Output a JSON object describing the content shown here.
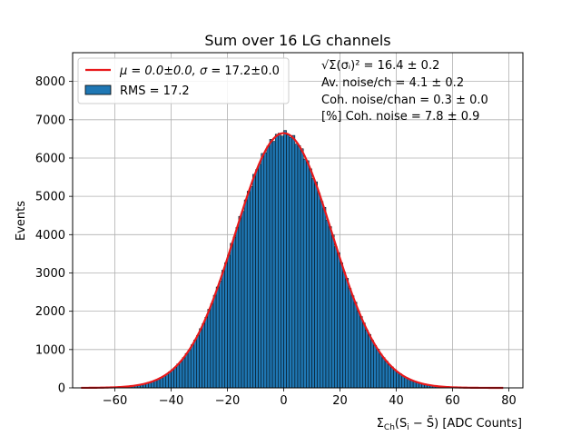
{
  "chart_data": {
    "type": "bar",
    "title": "Sum over 16 LG channels",
    "xlabel": "Σ_Ch(S_i − S̄) [ADC Counts]",
    "ylabel": "Events",
    "xlim": [
      -75,
      85
    ],
    "ylim": [
      0,
      8750
    ],
    "x_ticks": [
      -60,
      -40,
      -20,
      0,
      20,
      40,
      60,
      80
    ],
    "y_ticks": [
      0,
      1000,
      2000,
      3000,
      4000,
      5000,
      6000,
      7000,
      8000
    ],
    "x_tick_labels": [
      "−60",
      "−40",
      "−20",
      "0",
      "20",
      "40",
      "60",
      "80"
    ],
    "y_tick_labels": [
      "0",
      "1000",
      "2000",
      "3000",
      "4000",
      "5000",
      "6000",
      "7000",
      "8000"
    ],
    "grid": true,
    "histogram": {
      "name": "RMS = 17.2",
      "bin_start": -72,
      "bin_end": 78,
      "bin_width": 1,
      "amplitude": 6650,
      "mean": 0.0,
      "sigma": 17.2,
      "color": "#1f77b4"
    },
    "fit": {
      "name_parts": [
        "μ = 0.0±0.0, ",
        "σ",
        " = 17.2±0.0"
      ],
      "color": "#e8191b"
    },
    "legend_placement": "top-left",
    "annotations": [
      "√Σ(σᵢ)² = 16.4 ± 0.2",
      "Av. noise/ch  = 4.1 ± 0.2",
      "Coh. noise/chan  = 0.3 ± 0.0",
      "[%] Coh. noise  = 7.8 ± 0.9"
    ]
  }
}
